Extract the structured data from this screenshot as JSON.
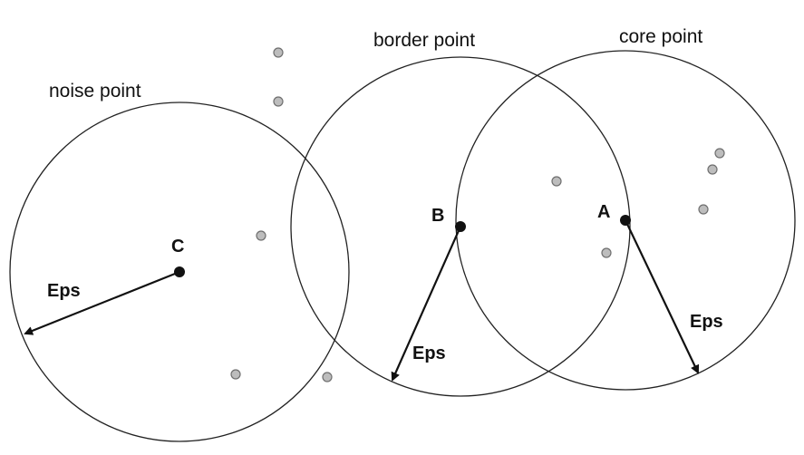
{
  "labels": {
    "noise_point": "noise point",
    "border_point": "border point",
    "core_point": "core point"
  },
  "points": {
    "a": "A",
    "b": "B",
    "c": "C"
  },
  "eps": {
    "a": "Eps",
    "b": "Eps",
    "c": "Eps"
  },
  "colors": {
    "line": "#222222",
    "center_point": "#111111",
    "neighbor_point_fill": "#bdbdbd",
    "neighbor_point_stroke": "#6f6f6f"
  }
}
